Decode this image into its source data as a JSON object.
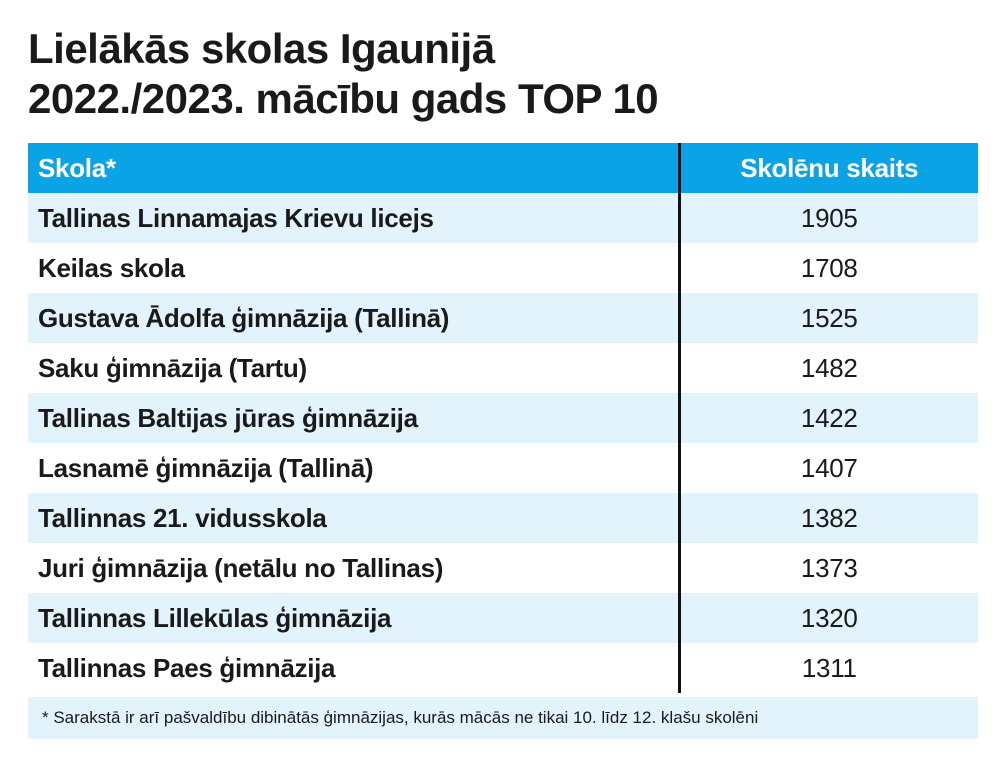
{
  "title_lines": [
    "Lielākās skolas Igaunijā",
    "2022./2023. mācību gads TOP 10"
  ],
  "chart_data": {
    "type": "table",
    "title": "Lielākās skolas Igaunijā 2022./2023. mācību gads TOP 10",
    "columns": [
      "Skola*",
      "Skolēnu skaits"
    ],
    "rows": [
      {
        "school": "Tallinas Linnamajas Krievu licejs",
        "count": "1905"
      },
      {
        "school": "Keilas skola",
        "count": "1708"
      },
      {
        "school": "Gustava Ādolfa ģimnāzija (Tallinā)",
        "count": "1525"
      },
      {
        "school": "Saku ģimnāzija (Tartu)",
        "count": "1482"
      },
      {
        "school": "Tallinas Baltijas jūras ģimnāzija",
        "count": "1422"
      },
      {
        "school": "Lasnamē ģimnāzija (Tallinā)",
        "count": "1407"
      },
      {
        "school": "Tallinnas 21. vidusskola",
        "count": "1382"
      },
      {
        "school": "Juri ģimnāzija (netālu no Tallinas)",
        "count": "1373"
      },
      {
        "school": "Tallinnas Lillekūlas ģimnāzija",
        "count": "1320"
      },
      {
        "school": "Tallinnas Paes ģimnāzija",
        "count": "1311"
      }
    ],
    "footnote": "* Sarakstā ir arī pašvaldību dibinātās ģimnāzijas, kurās mācās ne tikai 10. līdz 12. klašu skolēni"
  },
  "colors": {
    "header_bg": "#0aa3e6",
    "header_text": "#ffffff",
    "stripe_bg": "#e3f3fc",
    "divider": "#111111",
    "text": "#1a1a1a"
  }
}
